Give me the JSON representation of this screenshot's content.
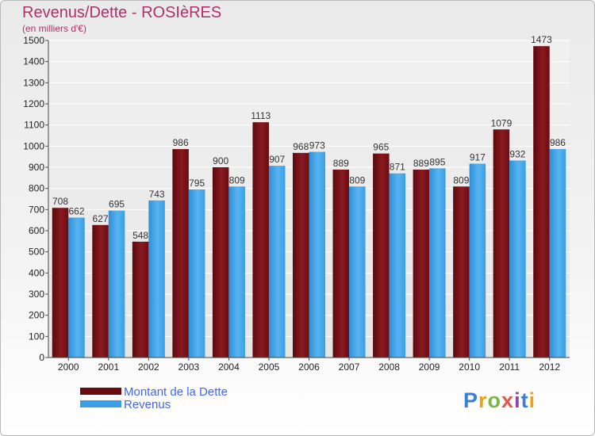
{
  "title": "Revenus/Dette - ROSIèRES",
  "subtitle": "(en milliers d'€)",
  "logo_text": "Proxiti",
  "logo_colors": [
    "#3a7fd5",
    "#e8a317",
    "#7ab648",
    "#e2574c",
    "#8e44ad",
    "#3a7fd5",
    "#e8a317"
  ],
  "colors": {
    "dette": "#7a0f14",
    "revenus": "#3a9ee6",
    "title": "#b0306a",
    "legend_text": "#4466ee"
  },
  "chart_data": {
    "type": "bar",
    "title": "Revenus/Dette - ROSIèRES",
    "subtitle": "(en milliers d'€)",
    "categories": [
      "2000",
      "2001",
      "2002",
      "2003",
      "2004",
      "2005",
      "2006",
      "2007",
      "2008",
      "2009",
      "2010",
      "2011",
      "2012"
    ],
    "series": [
      {
        "name": "Montant de la Dette",
        "color": "#7a0f14",
        "values": [
          708,
          627,
          548,
          986,
          900,
          1113,
          968,
          889,
          965,
          889,
          809,
          1079,
          1473
        ]
      },
      {
        "name": "Revenus",
        "color": "#3a9ee6",
        "values": [
          662,
          695,
          743,
          795,
          809,
          907,
          973,
          809,
          871,
          895,
          917,
          932,
          986
        ]
      }
    ],
    "ylim": [
      0,
      1500
    ],
    "yticks": [
      0,
      100,
      200,
      300,
      400,
      500,
      600,
      700,
      800,
      900,
      1000,
      1100,
      1200,
      1300,
      1400,
      1500
    ],
    "grid": true,
    "legend": "bottom-left"
  }
}
